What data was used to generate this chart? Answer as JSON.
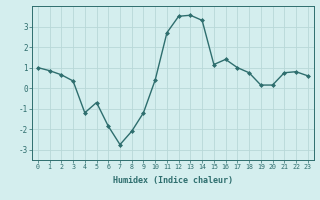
{
  "x": [
    0,
    1,
    2,
    3,
    4,
    5,
    6,
    7,
    8,
    9,
    10,
    11,
    12,
    13,
    14,
    15,
    16,
    17,
    18,
    19,
    20,
    21,
    22,
    23
  ],
  "y": [
    1.0,
    0.85,
    0.65,
    0.35,
    -1.2,
    -0.7,
    -1.85,
    -2.75,
    -2.1,
    -1.2,
    0.4,
    2.7,
    3.5,
    3.55,
    3.3,
    1.15,
    1.4,
    1.0,
    0.75,
    0.15,
    0.15,
    0.75,
    0.8,
    0.6
  ],
  "line_color": "#2e6e6e",
  "marker": "D",
  "marker_size": 2.0,
  "linewidth": 1.0,
  "bg_color": "#d4eeee",
  "grid_color": "#b8d8d8",
  "xlabel": "Humidex (Indice chaleur)",
  "ylim": [
    -3.5,
    4.0
  ],
  "yticks": [
    -3,
    -2,
    -1,
    0,
    1,
    2,
    3
  ],
  "xticks": [
    0,
    1,
    2,
    3,
    4,
    5,
    6,
    7,
    8,
    9,
    10,
    11,
    12,
    13,
    14,
    15,
    16,
    17,
    18,
    19,
    20,
    21,
    22,
    23
  ],
  "tick_color": "#2e6e6e",
  "label_color": "#2e6e6e",
  "xlabel_fontsize": 6.0,
  "xtick_fontsize": 4.8,
  "ytick_fontsize": 5.5
}
